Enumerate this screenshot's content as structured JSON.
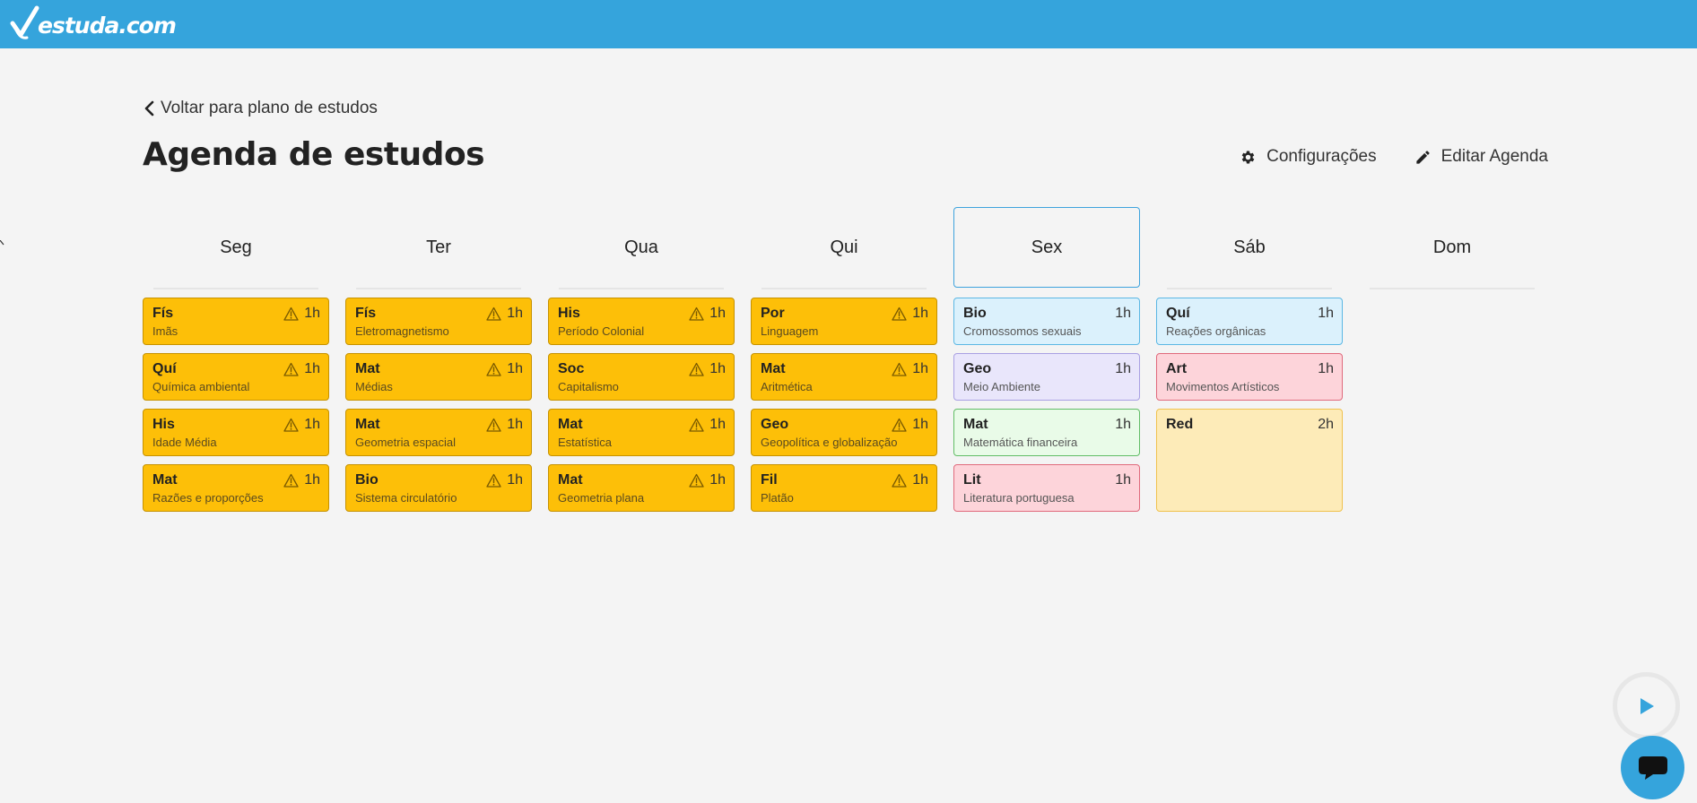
{
  "brand": {
    "name": "estuda.com",
    "color": "#35a4dc"
  },
  "nav": {
    "back_label": "Voltar para plano de estudos"
  },
  "page": {
    "title": "Agenda de estudos"
  },
  "actions": {
    "settings_label": "Configurações",
    "edit_label": "Editar Agenda"
  },
  "days": [
    {
      "label": "Seg",
      "active": false,
      "events": [
        {
          "subject": "Fís",
          "topic": "Imãs",
          "duration": "1h",
          "warning": true,
          "color": "yellow"
        },
        {
          "subject": "Quí",
          "topic": "Química ambiental",
          "duration": "1h",
          "warning": true,
          "color": "yellow"
        },
        {
          "subject": "His",
          "topic": "Idade Média",
          "duration": "1h",
          "warning": true,
          "color": "yellow"
        },
        {
          "subject": "Mat",
          "topic": "Razões e proporções",
          "duration": "1h",
          "warning": true,
          "color": "yellow"
        }
      ]
    },
    {
      "label": "Ter",
      "active": false,
      "events": [
        {
          "subject": "Fís",
          "topic": "Eletromagnetismo",
          "duration": "1h",
          "warning": true,
          "color": "yellow"
        },
        {
          "subject": "Mat",
          "topic": "Médias",
          "duration": "1h",
          "warning": true,
          "color": "yellow"
        },
        {
          "subject": "Mat",
          "topic": "Geometria espacial",
          "duration": "1h",
          "warning": true,
          "color": "yellow"
        },
        {
          "subject": "Bio",
          "topic": "Sistema circulatório",
          "duration": "1h",
          "warning": true,
          "color": "yellow"
        }
      ]
    },
    {
      "label": "Qua",
      "active": false,
      "events": [
        {
          "subject": "His",
          "topic": "Período Colonial",
          "duration": "1h",
          "warning": true,
          "color": "yellow"
        },
        {
          "subject": "Soc",
          "topic": "Capitalismo",
          "duration": "1h",
          "warning": true,
          "color": "yellow"
        },
        {
          "subject": "Mat",
          "topic": "Estatística",
          "duration": "1h",
          "warning": true,
          "color": "yellow"
        },
        {
          "subject": "Mat",
          "topic": "Geometria plana",
          "duration": "1h",
          "warning": true,
          "color": "yellow"
        }
      ]
    },
    {
      "label": "Qui",
      "active": false,
      "events": [
        {
          "subject": "Por",
          "topic": "Linguagem",
          "duration": "1h",
          "warning": true,
          "color": "yellow"
        },
        {
          "subject": "Mat",
          "topic": "Aritmética",
          "duration": "1h",
          "warning": true,
          "color": "yellow"
        },
        {
          "subject": "Geo",
          "topic": "Geopolítica e globalização",
          "duration": "1h",
          "warning": true,
          "color": "yellow"
        },
        {
          "subject": "Fil",
          "topic": "Platão",
          "duration": "1h",
          "warning": true,
          "color": "yellow"
        }
      ]
    },
    {
      "label": "Sex",
      "active": true,
      "events": [
        {
          "subject": "Bio",
          "topic": "Cromossomos sexuais",
          "duration": "1h",
          "warning": false,
          "color": "blue"
        },
        {
          "subject": "Geo",
          "topic": "Meio Ambiente",
          "duration": "1h",
          "warning": false,
          "color": "purple"
        },
        {
          "subject": "Mat",
          "topic": "Matemática financeira",
          "duration": "1h",
          "warning": false,
          "color": "green"
        },
        {
          "subject": "Lit",
          "topic": "Literatura portuguesa",
          "duration": "1h",
          "warning": false,
          "color": "pink"
        }
      ]
    },
    {
      "label": "Sáb",
      "active": false,
      "events": [
        {
          "subject": "Quí",
          "topic": "Reações orgânicas",
          "duration": "1h",
          "warning": false,
          "color": "blue"
        },
        {
          "subject": "Art",
          "topic": "Movimentos Artísticos",
          "duration": "1h",
          "warning": false,
          "color": "pink"
        },
        {
          "subject": "Red",
          "topic": "",
          "duration": "2h",
          "warning": false,
          "color": "cream"
        }
      ]
    },
    {
      "label": "Dom",
      "active": false,
      "events": []
    }
  ],
  "colors": {
    "yellow": "#fdbf08",
    "blue": "#dbf1fc",
    "purple": "#e9e6fb",
    "green": "#e9fbe8",
    "pink": "#fdd4da",
    "cream": "#fdebb8",
    "active_border": "#3ea3dd"
  },
  "icons": {
    "back": "chevron-left-icon",
    "settings": "gear-icon",
    "edit": "pencil-icon",
    "warning": "warning-triangle-icon",
    "play": "play-icon",
    "chat": "chat-bubble-icon"
  }
}
